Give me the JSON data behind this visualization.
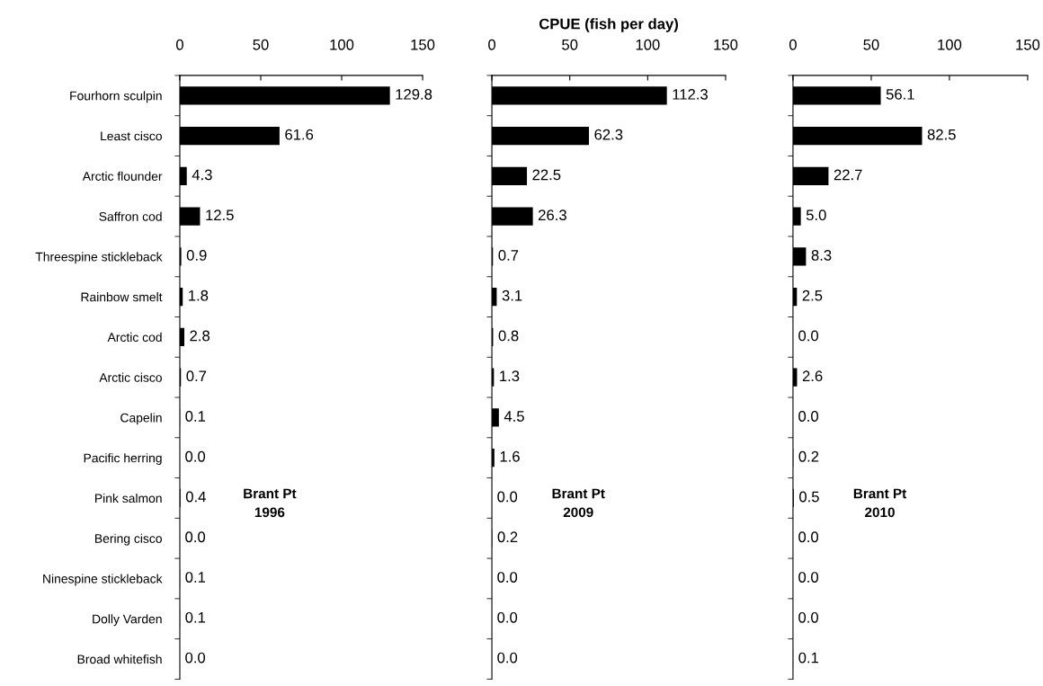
{
  "chart_data": [
    {
      "type": "bar",
      "orientation": "horizontal",
      "categories": [
        "Fourhorn sculpin",
        "Least cisco",
        "Arctic flounder",
        "Saffron cod",
        "Threespine stickleback",
        "Rainbow smelt",
        "Arctic cod",
        "Arctic cisco",
        "Capelin",
        "Pacific herring",
        "Pink salmon",
        "Bering cisco",
        "Ninespine stickleback",
        "Dolly Varden",
        "Broad whitefish"
      ],
      "values": [
        129.8,
        61.6,
        4.3,
        12.5,
        0.9,
        1.8,
        2.8,
        0.7,
        0.1,
        0.0,
        0.4,
        0.0,
        0.1,
        0.1,
        0.0
      ],
      "value_labels": [
        "129.8",
        "61.6",
        "4.3",
        "12.5",
        "0.9",
        "1.8",
        "2.8",
        "0.7",
        "0.1",
        "0.0",
        "0.4",
        "0.0",
        "0.1",
        "0.1",
        "0.0"
      ],
      "color": "#000000",
      "xlim": [
        0,
        150
      ],
      "xticks": [
        0,
        50,
        100,
        150
      ],
      "grid": false,
      "annotations": [
        "Brant Pt\n1996"
      ]
    },
    {
      "type": "bar",
      "orientation": "horizontal",
      "xlabel": "CPUE (fish per day)",
      "categories": [
        null,
        null,
        null,
        null,
        null,
        null,
        null,
        null,
        null,
        null,
        null,
        null,
        null,
        null,
        null
      ],
      "values": [
        112.3,
        62.3,
        22.5,
        26.3,
        0.7,
        3.1,
        0.8,
        1.3,
        4.5,
        1.6,
        0.0,
        0.2,
        0.0,
        0.0,
        0.0
      ],
      "value_labels": [
        "112.3",
        "62.3",
        "22.5",
        "26.3",
        "0.7",
        "3.1",
        "0.8",
        "1.3",
        "4.5",
        "1.6",
        "0.0",
        "0.2",
        "0.0",
        "0.0",
        "0.0"
      ],
      "color": "#000000",
      "xlim": [
        0,
        150
      ],
      "xticks": [
        0,
        50,
        100,
        150
      ],
      "grid": false,
      "annotations": [
        "Brant Pt\n2009"
      ]
    },
    {
      "type": "bar",
      "orientation": "horizontal",
      "categories": [
        null,
        null,
        null,
        null,
        null,
        null,
        null,
        null,
        null,
        null,
        null,
        null,
        null,
        null,
        null
      ],
      "values": [
        56.1,
        82.5,
        22.7,
        5.0,
        8.3,
        2.5,
        0.0,
        2.6,
        0.0,
        0.2,
        0.5,
        0.0,
        0.0,
        0.0,
        0.1
      ],
      "value_labels": [
        "56.1",
        "82.5",
        "22.7",
        "5.0",
        "8.3",
        "2.5",
        "0.0",
        "2.6",
        "0.0",
        "0.2",
        "0.5",
        "0.0",
        "0.0",
        "0.0",
        "0.1"
      ],
      "color": "#000000",
      "xlim": [
        0,
        150
      ],
      "xticks": [
        0,
        50,
        100,
        150
      ],
      "grid": false,
      "annotations": [
        "Brant Pt\n2010"
      ]
    }
  ]
}
